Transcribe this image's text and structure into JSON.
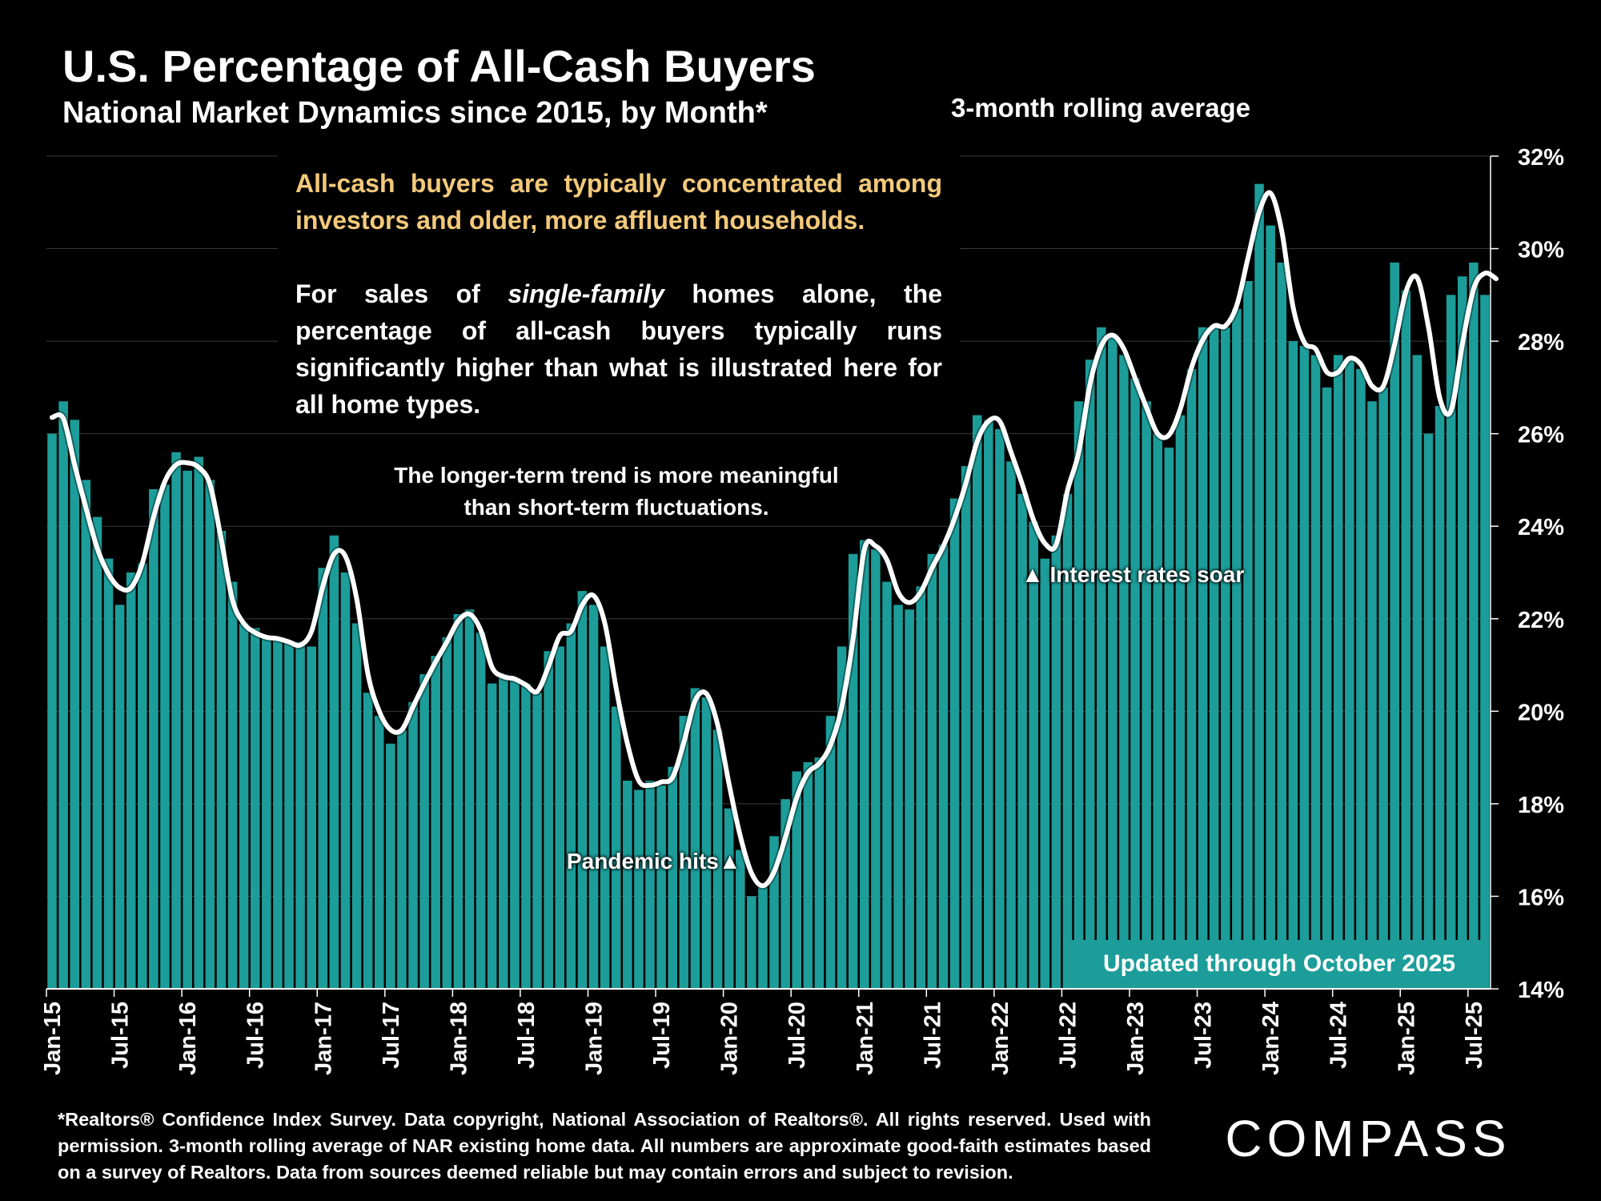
{
  "header": {
    "title": "U.S. Percentage of All-Cash Buyers",
    "subtitle": "National Market Dynamics since 2015, by Month*"
  },
  "notes": {
    "line_label": "3-month rolling average",
    "box_para1": "All-cash buyers are typically concentrated among investors and older, more affluent households.",
    "box_para2_a": "For sales of ",
    "box_para2_em": "single-family",
    "box_para2_b": " homes alone, the percentage of all-cash buyers typically runs significantly higher than what is illustrated here for all home types.",
    "trend_line1": "The longer-term trend is more meaningful",
    "trend_line2": "than short-term fluctuations.",
    "rates_annotation": "▲ Interest rates soar",
    "pandemic_annotation": "Pandemic hits▲",
    "updated": "Updated through October 2025"
  },
  "footer": {
    "footnote": "*Realtors® Confidence Index Survey. Data copyright, National Association of Realtors®. All rights reserved. Used with permission. 3-month rolling average of NAR existing home data. All numbers are approximate good-faith estimates based on a survey of Realtors. Data from sources deemed reliable but may contain errors and subject to revision.",
    "logo": "COMPASS"
  },
  "colors": {
    "bar": "#1c9d9a",
    "line": "#ffffff",
    "background": "#000000",
    "highlight_text": "#f3c97a",
    "grid": "#3a3a3a"
  },
  "chart_data": {
    "type": "bar",
    "x_start": "2015-01",
    "x_end": "2025-10",
    "x_tick_labels": [
      "Jan-15",
      "Jul-15",
      "Jan-16",
      "Jul-16",
      "Jan-17",
      "Jul-17",
      "Jan-18",
      "Jul-18",
      "Jan-19",
      "Jul-19",
      "Jan-20",
      "Jul-20",
      "Jan-21",
      "Jul-21",
      "Jan-22",
      "Jul-22",
      "Jan-23",
      "Jul-23",
      "Jan-24",
      "Jul-24",
      "Jan-25",
      "Jul-25"
    ],
    "y_tick_labels": [
      "14%",
      "16%",
      "18%",
      "20%",
      "22%",
      "24%",
      "26%",
      "28%",
      "30%",
      "32%"
    ],
    "ylim": [
      14,
      32
    ],
    "y_unit": "%",
    "grid": true,
    "series": [
      {
        "type": "bar",
        "values": [
          26.0,
          26.7,
          26.3,
          25.0,
          24.2,
          23.3,
          22.3,
          23.0,
          23.2,
          24.8,
          24.9,
          25.6,
          25.2,
          25.5,
          25.0,
          23.9,
          22.8,
          21.9,
          21.8,
          21.6,
          21.6,
          21.5,
          21.5,
          21.4,
          23.1,
          23.8,
          23.0,
          21.9,
          20.4,
          19.9,
          19.3,
          19.6,
          20.2,
          20.8,
          21.2,
          21.6,
          22.1,
          22.2,
          21.7,
          20.6,
          20.8,
          20.7,
          20.6,
          20.4,
          21.3,
          21.4,
          21.9,
          22.6,
          22.3,
          21.4,
          20.1,
          18.5,
          18.3,
          18.5,
          18.4,
          18.8,
          19.9,
          20.5,
          20.3,
          19.6,
          17.9,
          17.0,
          16.0,
          16.2,
          17.3,
          18.1,
          18.7,
          18.9,
          19.0,
          19.9,
          21.4,
          23.4,
          23.7,
          23.5,
          22.8,
          22.3,
          22.2,
          22.7,
          23.4,
          23.6,
          24.6,
          25.3,
          26.4,
          26.3,
          26.1,
          25.4,
          24.7,
          24.1,
          23.3,
          23.8,
          24.7,
          26.7,
          27.6,
          28.3,
          28.1,
          27.7,
          27.2,
          26.7,
          26.0,
          25.7,
          26.4,
          27.4,
          28.3,
          28.3,
          28.3,
          28.7,
          29.3,
          31.4,
          30.5,
          29.7,
          28.0,
          27.9,
          27.7,
          27.0,
          27.7,
          27.6,
          27.4,
          26.7,
          27.0,
          29.7,
          29.1,
          27.7,
          26.0,
          26.6,
          29.0,
          29.4,
          29.7,
          29.0
        ]
      },
      {
        "type": "line",
        "name": "3-month rolling average",
        "values": [
          26.35,
          26.33,
          25.33,
          24.4,
          23.53,
          22.97,
          22.67,
          22.67,
          23.2,
          24.2,
          24.97,
          25.33,
          25.37,
          25.27,
          24.9,
          23.7,
          22.4,
          21.9,
          21.7,
          21.6,
          21.57,
          21.5,
          21.43,
          21.73,
          22.7,
          23.4,
          23.35,
          22.43,
          20.8,
          20.0,
          19.6,
          19.6,
          20.1,
          20.6,
          21.07,
          21.5,
          21.95,
          22.1,
          21.75,
          20.95,
          20.75,
          20.7,
          20.57,
          20.43,
          20.97,
          21.63,
          21.73,
          22.3,
          22.5,
          21.9,
          20.5,
          19.3,
          18.5,
          18.4,
          18.47,
          18.57,
          19.33,
          20.23,
          20.38,
          19.7,
          18.43,
          17.3,
          16.5,
          16.23,
          16.53,
          17.27,
          18.13,
          18.67,
          18.87,
          19.27,
          20.1,
          21.57,
          23.5,
          23.57,
          23.27,
          22.57,
          22.35,
          22.58,
          23.1,
          23.57,
          24.17,
          24.93,
          25.83,
          26.27,
          26.27,
          25.6,
          24.9,
          24.13,
          23.63,
          23.6,
          24.77,
          25.6,
          27.07,
          27.9,
          28.13,
          27.83,
          27.2,
          26.57,
          26.0,
          25.97,
          26.53,
          27.43,
          28.03,
          28.33,
          28.33,
          28.77,
          29.8,
          30.8,
          31.2,
          30.37,
          28.73,
          27.97,
          27.83,
          27.33,
          27.33,
          27.63,
          27.5,
          27.03,
          27.03,
          27.93,
          29.07,
          29.37,
          28.3,
          26.77,
          26.5,
          27.93,
          29.13,
          29.47,
          29.35
        ]
      }
    ]
  }
}
